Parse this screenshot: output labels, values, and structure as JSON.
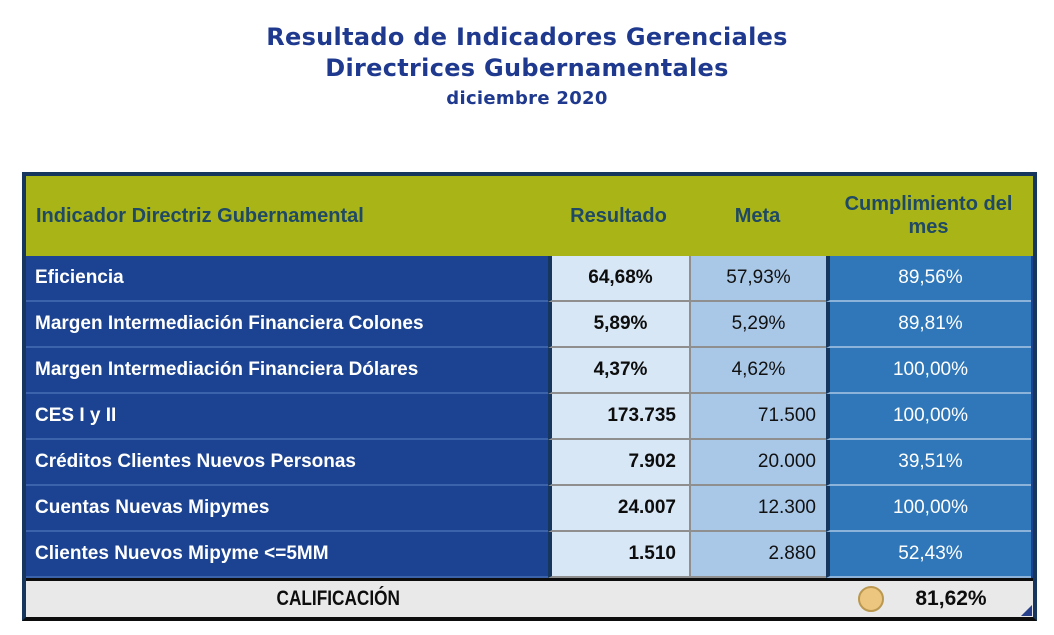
{
  "title": {
    "line1": "Resultado de Indicadores Gerenciales",
    "line2": "Directrices Gubernamentales",
    "line3": "diciembre  2020"
  },
  "table": {
    "headers": {
      "indicator": "Indicador Directriz Gubernamental",
      "result": "Resultado",
      "meta": "Meta",
      "compliance": "Cumplimiento del mes"
    },
    "rows": [
      {
        "indicator": "Eficiencia",
        "result": "64,68%",
        "meta": "57,93%",
        "compliance": "89,56%"
      },
      {
        "indicator": "Margen Intermediación Financiera Colones",
        "result": "5,89%",
        "meta": "5,29%",
        "compliance": "89,81%"
      },
      {
        "indicator": "Margen Intermediación Financiera Dólares",
        "result": "4,37%",
        "meta": "4,62%",
        "compliance": "100,00%"
      },
      {
        "indicator": "CES I y II",
        "result": "173.735",
        "meta": "71.500",
        "compliance": "100,00%"
      },
      {
        "indicator": "Créditos Clientes Nuevos Personas",
        "result": "7.902",
        "meta": "20.000",
        "compliance": "39,51%"
      },
      {
        "indicator": "Cuentas Nuevas Mipymes",
        "result": "24.007",
        "meta": "12.300",
        "compliance": "100,00%"
      },
      {
        "indicator": "Clientes Nuevos Mipyme <=5MM",
        "result": "1.510",
        "meta": "2.880",
        "compliance": "52,43%"
      }
    ],
    "footer": {
      "label": "CALIFICACIÓN",
      "value": "81,62%",
      "status_icon": "circle-indicator",
      "status_color": "#ecc57e"
    }
  },
  "colors": {
    "title_text": "#1e398e",
    "header_bg": "#a9b417",
    "header_text": "#1f4964",
    "indicator_bg": "#1c4391",
    "result_bg": "#d8e7f6",
    "meta_bg": "#a9c7e7",
    "compliance_bg": "#2f77b8",
    "outer_border": "#17365d",
    "footer_bg": "#e9e9e9"
  }
}
